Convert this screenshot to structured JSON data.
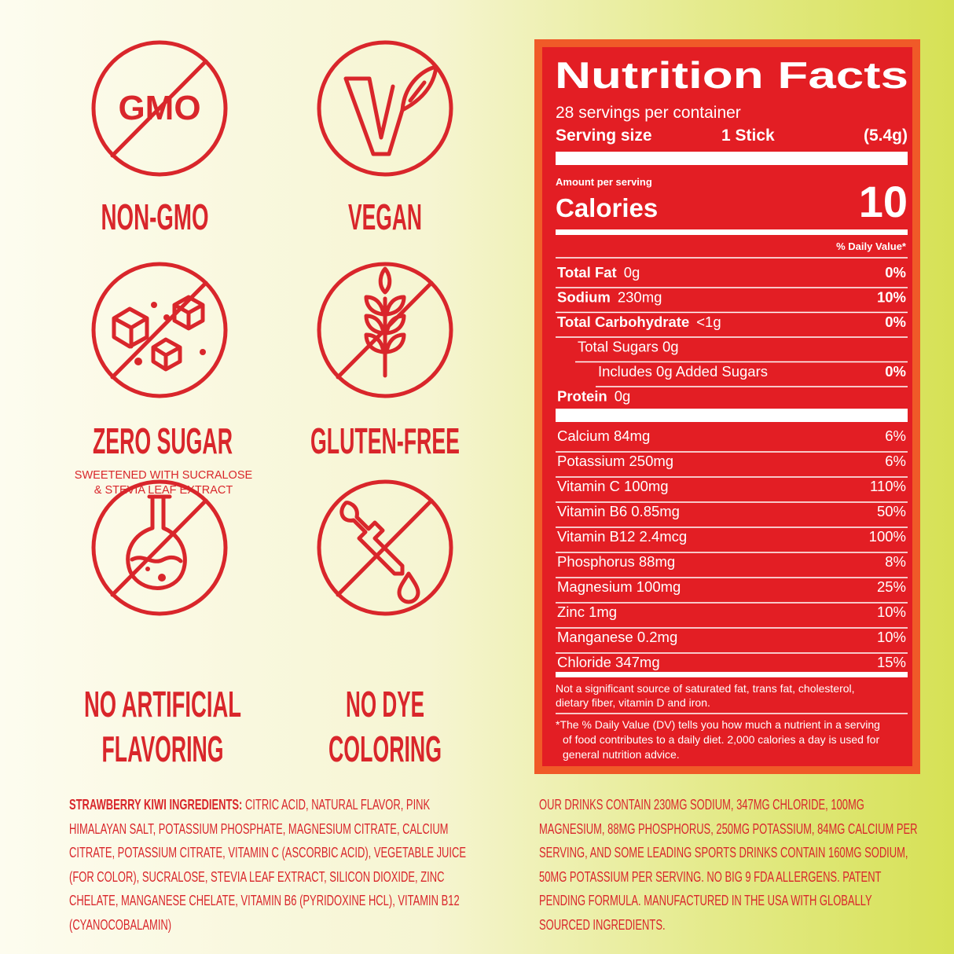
{
  "badges": [
    {
      "icon_text": "GMO",
      "label": [
        "NON-GMO"
      ]
    },
    {
      "label": [
        "VEGAN"
      ]
    },
    {
      "label": [
        "ZERO SUGAR"
      ],
      "note": [
        "SWEETENED WITH SUCRALOSE",
        "&  STEVIA LEAF EXTRACT"
      ]
    },
    {
      "label": [
        "GLUTEN-FREE"
      ]
    },
    {
      "label": [
        "NO ARTIFICIAL",
        "FLAVORING"
      ]
    },
    {
      "label": [
        "NO DYE",
        "COLORING"
      ]
    }
  ],
  "nutrition": {
    "title": "Nutrition Facts",
    "servings": "28 servings per container",
    "serving_size": {
      "label": "Serving size",
      "amount": "1 Stick",
      "weight": "(5.4g)"
    },
    "amount_per_serving": "Amount per serving",
    "calories": {
      "label": "Calories",
      "value": "10"
    },
    "dv_header": "% Daily Value*",
    "rows": [
      {
        "name": "Total Fat",
        "amount": "0g",
        "dv": "0%"
      },
      {
        "name": "Sodium",
        "amount": "230mg",
        "dv": "10%"
      },
      {
        "name": "Total Carbohydrate",
        "amount": "<1g",
        "dv": "0%",
        "sub_rows": [
          {
            "text": "Total Sugars 0g",
            "sub_rows": [
              {
                "text": "Includes 0g Added Sugars",
                "dv": "0%"
              }
            ]
          }
        ]
      },
      {
        "name": "Protein",
        "amount": "0g"
      }
    ],
    "minerals": [
      {
        "name": "Calcium 84mg",
        "dv": "6%"
      },
      {
        "name": "Potassium 250mg",
        "dv": "6%"
      },
      {
        "name": "Vitamin C 100mg",
        "dv": "110%"
      },
      {
        "name": "Vitamin B6 0.85mg",
        "dv": "50%"
      },
      {
        "name": "Vitamin B12 2.4mcg",
        "dv": "100%"
      },
      {
        "name": "Phosphorus 88mg",
        "dv": "8%"
      },
      {
        "name": "Magnesium 100mg",
        "dv": "25%"
      },
      {
        "name": "Zinc 1mg",
        "dv": "10%"
      },
      {
        "name": "Manganese 0.2mg",
        "dv": "10%"
      },
      {
        "name": "Chloride 347mg",
        "dv": "15%"
      }
    ],
    "footnote": [
      "Not a significant source of saturated fat, trans fat, cholesterol,",
      "dietary fiber, vitamin D and iron."
    ],
    "dv_note": [
      "*The % Daily Value (DV) tells you how much a nutrient in a serving",
      "of food contributes to a daily diet. 2,000 calories a day is used for",
      "general nutrition advice."
    ]
  },
  "ingredients": {
    "heading": "STRAWBERRY KIWI INGREDIENTS:",
    "text": "CITRIC ACID, NATURAL FLAVOR, PINK HIMALAYAN SALT, POTASSIUM PHOSPHATE, MAGNESIUM CITRATE, CALCIUM CITRATE, POTASSIUM CITRATE, VITAMIN C (ASCORBIC ACID), VEGETABLE JUICE (FOR COLOR), SUCRALOSE, STEVIA LEAF EXTRACT, SILICON DIOXIDE, ZINC CHELATE, MANGANESE CHELATE, VITAMIN B6 (PYRIDOXINE HCL), VITAMIN B12 (CYANOCOBALAMIN)"
  },
  "claims": "OUR DRINKS CONTAIN 230MG SODIUM, 347MG CHLORIDE,  100MG MAGNESIUM, 88MG PHOSPHORUS, 250MG POTASSIUM, 84MG CALCIUM PER SERVING, AND SOME LEADING SPORTS DRINKS CONTAIN 160MG SODIUM, 50MG POTASSIUM PER SERVING. NO BIG 9 FDA ALLERGENS. PATENT PENDING FORMULA. MANUFACTURED IN THE USA WITH GLOBALLY SOURCED INGREDIENTS."
}
